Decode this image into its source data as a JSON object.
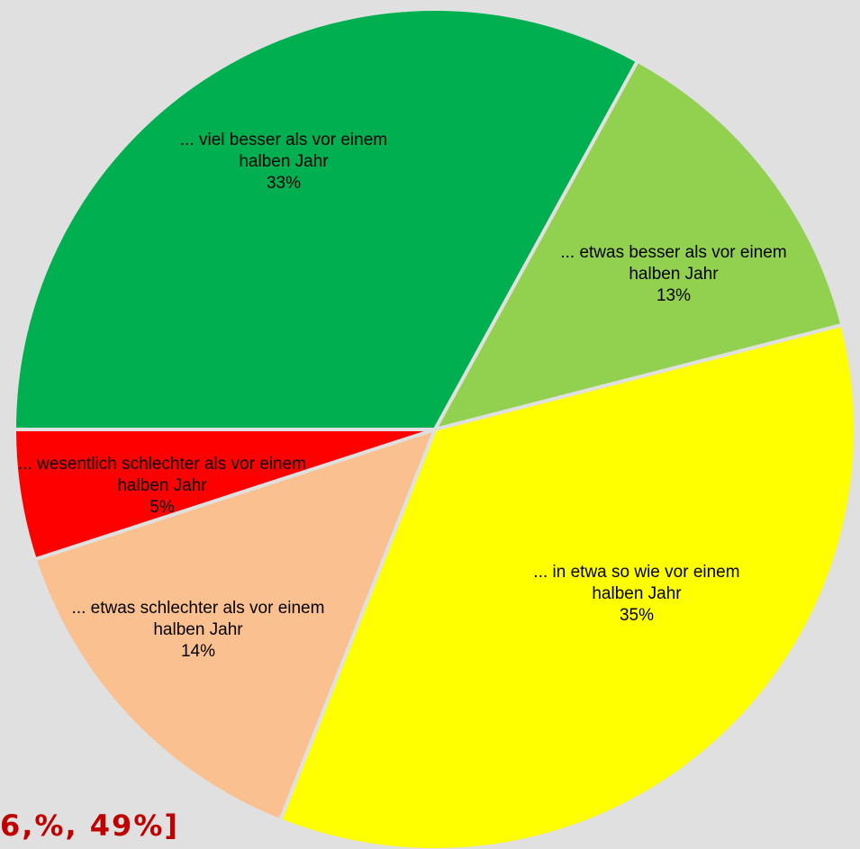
{
  "chart_data": {
    "type": "pie",
    "categories": [
      "... viel besser als vor einem halben Jahr",
      "... etwas besser als vor einem halben Jahr",
      "... in etwa so wie vor einem halben Jahr",
      "... etwas schlechter als vor einem halben Jahr",
      "... wesentlich schlechter als vor einem halben Jahr"
    ],
    "values": [
      33,
      13,
      35,
      14,
      5
    ],
    "value_labels": [
      "33%",
      "13%",
      "35%",
      "14%",
      "5%"
    ],
    "colors": [
      "#00b050",
      "#92d050",
      "#ffff00",
      "#fac090",
      "#ff0000"
    ],
    "annotation": "6,%, 49%]"
  }
}
